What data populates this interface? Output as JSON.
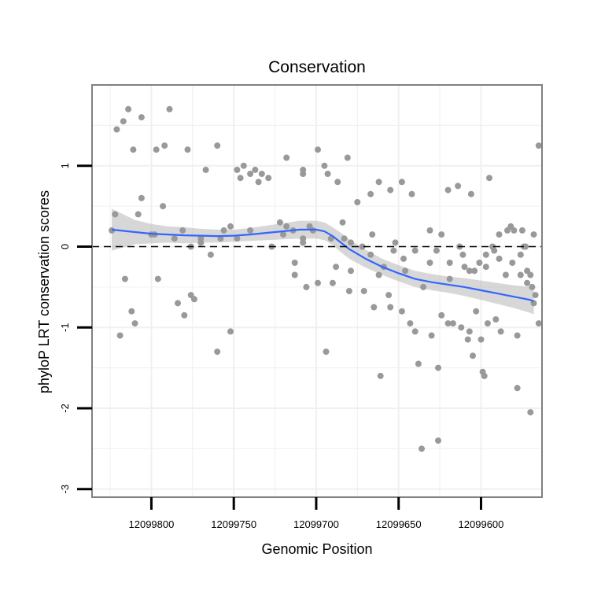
{
  "chart_data": {
    "type": "scatter",
    "title": "Conservation",
    "xlabel": "Genomic Position",
    "ylabel": "phyloP LRT conservation scores",
    "x_reversed": true,
    "xlim": [
      12099836,
      12099563
    ],
    "ylim": [
      -3.1,
      2.0
    ],
    "x_ticks": [
      12099800,
      12099750,
      12099700,
      12099650,
      12099600
    ],
    "y_ticks": [
      -3,
      -2,
      -1,
      0,
      1
    ],
    "grid": true,
    "reference_line": {
      "y": 0,
      "style": "dashed"
    },
    "colors": {
      "points": "#999999",
      "smooth": "#3366ff",
      "band": "#bdbdbd",
      "panel_border": "#808080",
      "grid": "#f0f0f0"
    },
    "series": [
      {
        "kind": "points",
        "x": [
          12099822,
          12099819,
          12099816,
          12099812,
          12099810,
          12099806,
          12099800,
          12099796,
          12099793,
          12099784,
          12099780,
          12099776,
          12099774,
          12099760,
          12099752,
          12099702,
          12099694,
          12099708,
          12099714,
          12099718,
          12099722,
          12099735,
          12099740,
          12099744,
          12099746,
          12099748,
          12099752,
          12099758,
          12099770,
          12099776,
          12099786,
          12099814,
          12099806,
          12099695,
          12099733,
          12099797,
          12099792,
          12099708,
          12099681,
          12099684,
          12099667,
          12099675,
          12099655,
          12099662,
          12099648,
          12099642,
          12099620,
          12099614,
          12099606,
          12099595,
          12099584,
          12099582,
          12099580,
          12099575,
          12099568,
          12099573,
          12099565,
          12099570,
          12099599,
          12099605,
          12099636,
          12099661,
          12099626,
          12099638,
          12099608,
          12099612,
          12099626,
          12099588,
          12099578,
          12099630,
          12099620,
          12099596,
          12099655,
          12099603,
          12099591,
          12099600,
          12099607,
          12099565,
          12099570,
          12099578,
          12099598,
          12099617,
          12099624,
          12099640,
          12099643,
          12099648,
          12099665,
          12099671,
          12099680,
          12099690,
          12099706,
          12099713,
          12099824,
          12099808,
          12099798,
          12099781,
          12099770,
          12099764,
          12099756,
          12099748,
          12099740,
          12099727,
          12099720,
          12099713,
          12099708,
          12099704,
          12099699,
          12099691,
          12099688,
          12099683,
          12099679,
          12099666,
          12099659,
          12099653,
          12099646,
          12099635,
          12099631,
          12099627,
          12099619,
          12099613,
          12099610,
          12099604,
          12099597,
          12099592,
          12099589,
          12099585,
          12099576,
          12099574,
          12099572,
          12099567,
          12099821,
          12099817,
          12099811,
          12099789,
          12099778,
          12099767,
          12099760,
          12099737,
          12099729,
          12099718,
          12099708,
          12099699,
          12099693,
          12099687,
          12099679,
          12099672,
          12099667,
          12099662,
          12099656,
          12099652,
          12099647,
          12099640,
          12099631,
          12099624,
          12099619,
          12099611,
          12099607,
          12099601,
          12099597,
          12099593,
          12099589,
          12099581,
          12099576,
          12099572,
          12099569,
          12099568
        ],
        "y": [
          0.4,
          -1.1,
          -0.4,
          -0.8,
          -0.95,
          0.6,
          0.15,
          -0.4,
          0.5,
          -0.7,
          -0.85,
          -0.6,
          -0.65,
          -1.3,
          -1.05,
          0.2,
          -1.3,
          0.1,
          0.2,
          0.25,
          0.3,
          0.8,
          0.9,
          1.0,
          0.85,
          0.95,
          0.25,
          0.1,
          0.05,
          0.0,
          0.1,
          1.7,
          1.6,
          1.0,
          0.9,
          1.2,
          1.25,
          0.95,
          1.1,
          0.3,
          0.65,
          0.55,
          0.7,
          0.8,
          0.8,
          0.65,
          0.7,
          0.75,
          0.65,
          0.85,
          0.2,
          0.25,
          0.2,
          0.2,
          0.15,
          0.0,
          1.25,
          -0.35,
          -1.55,
          -1.35,
          -2.5,
          -1.6,
          -2.4,
          -1.45,
          -1.15,
          -1.0,
          -1.5,
          -1.05,
          -1.1,
          -1.1,
          -0.95,
          -0.95,
          -0.75,
          -0.8,
          -0.9,
          -1.15,
          -1.05,
          -0.95,
          -2.05,
          -1.75,
          -1.6,
          -0.95,
          -0.85,
          -1.05,
          -0.95,
          -0.8,
          -0.75,
          -0.55,
          -0.55,
          -0.45,
          -0.5,
          -0.35,
          0.2,
          0.4,
          0.15,
          0.2,
          0.1,
          -0.1,
          0.2,
          0.1,
          0.2,
          0.0,
          0.15,
          -0.2,
          0.05,
          0.25,
          -0.45,
          0.1,
          -0.25,
          0.1,
          -0.3,
          0.15,
          -0.25,
          -0.05,
          -0.3,
          -0.5,
          -0.2,
          -0.05,
          -0.4,
          0.0,
          -0.25,
          -0.3,
          -0.1,
          -0.05,
          0.15,
          -0.35,
          -0.1,
          0.0,
          -0.3,
          -0.6,
          1.45,
          1.55,
          1.2,
          1.7,
          1.2,
          0.95,
          1.25,
          0.95,
          0.85,
          1.1,
          0.9,
          1.2,
          0.9,
          0.8,
          0.05,
          0.0,
          -0.1,
          -0.35,
          -0.6,
          0.05,
          -0.15,
          -0.05,
          0.2,
          0.15,
          -0.2,
          -0.1,
          -0.3,
          -0.2,
          -0.25,
          0.0,
          -0.15,
          -0.2,
          -0.35,
          -0.45,
          -0.5,
          -0.7
        ]
      },
      {
        "kind": "smooth",
        "x": [
          12099824,
          12099810,
          12099800,
          12099790,
          12099780,
          12099770,
          12099760,
          12099750,
          12099740,
          12099730,
          12099720,
          12099710,
          12099700,
          12099695,
          12099690,
          12099685,
          12099680,
          12099670,
          12099660,
          12099650,
          12099640,
          12099630,
          12099620,
          12099610,
          12099600,
          12099590,
          12099580,
          12099570,
          12099568
        ],
        "y": [
          0.21,
          0.18,
          0.16,
          0.15,
          0.14,
          0.135,
          0.13,
          0.135,
          0.15,
          0.17,
          0.19,
          0.21,
          0.21,
          0.19,
          0.13,
          0.05,
          -0.03,
          -0.15,
          -0.25,
          -0.33,
          -0.4,
          -0.44,
          -0.47,
          -0.5,
          -0.54,
          -0.58,
          -0.62,
          -0.66,
          -0.68
        ],
        "ymin": [
          -0.05,
          0.03,
          0.04,
          0.05,
          0.04,
          0.05,
          0.05,
          0.06,
          0.07,
          0.08,
          0.09,
          0.1,
          0.1,
          0.08,
          0.02,
          -0.07,
          -0.15,
          -0.26,
          -0.35,
          -0.43,
          -0.5,
          -0.54,
          -0.57,
          -0.61,
          -0.66,
          -0.71,
          -0.76,
          -0.82,
          -0.84
        ],
        "ymax": [
          0.47,
          0.33,
          0.28,
          0.25,
          0.24,
          0.22,
          0.21,
          0.21,
          0.23,
          0.26,
          0.29,
          0.32,
          0.32,
          0.3,
          0.24,
          0.17,
          0.09,
          -0.04,
          -0.15,
          -0.23,
          -0.3,
          -0.34,
          -0.37,
          -0.39,
          -0.42,
          -0.45,
          -0.48,
          -0.5,
          -0.52
        ]
      }
    ]
  }
}
